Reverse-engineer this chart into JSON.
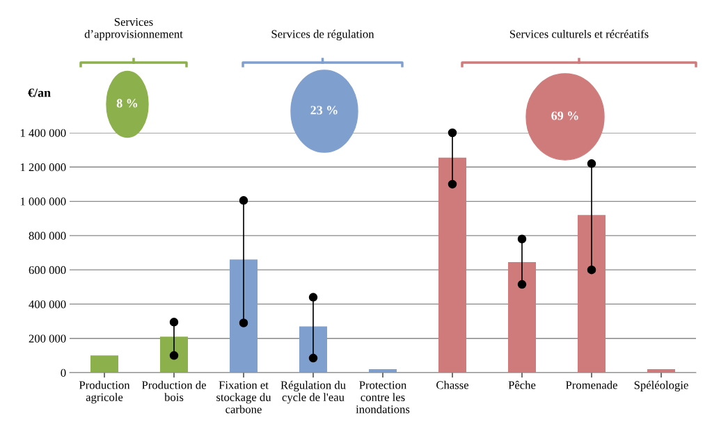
{
  "chart_data": {
    "type": "bar",
    "ylabel": "€/an",
    "categories": [
      "Production\nagricole",
      "Production de\nbois",
      "Fixation et\nstockage du\ncarbone",
      "Régulation du\ncycle de l'eau",
      "Protection\ncontre les\ninondations",
      "Chasse",
      "Pêche",
      "Promenade",
      "Spéléologie"
    ],
    "series": [
      {
        "colors": [
          "#8cb04c",
          "#8cb04c",
          "#7f9fcf",
          "#7f9fcf",
          "#7f9fcf",
          "#d07b7b",
          "#d07b7b",
          "#d07b7b",
          "#d07b7b"
        ],
        "values": [
          100000,
          210000,
          660000,
          270000,
          20000,
          1255000,
          645000,
          920000,
          20000
        ]
      },
      {
        "type": "line",
        "color": "#000000",
        "x": [
          "Production de\nbois",
          "Production de\nbois"
        ],
        "values": [
          100000,
          295000
        ]
      },
      {
        "type": "line",
        "color": "#000000",
        "x": [
          "Fixation et\nstockage du\ncarbone",
          "Fixation et\nstockage du\ncarbone"
        ],
        "values": [
          290000,
          1005000
        ]
      },
      {
        "type": "line",
        "color": "#000000",
        "x": [
          "Régulation du\ncycle de l'eau",
          "Régulation du\ncycle de l'eau"
        ],
        "values": [
          85000,
          440000
        ]
      },
      {
        "type": "line",
        "color": "#000000",
        "x": [
          "Chasse",
          "Chasse"
        ],
        "values": [
          1100000,
          1400000
        ]
      },
      {
        "type": "line",
        "color": "#000000",
        "x": [
          "Pêche",
          "Pêche"
        ],
        "values": [
          515000,
          780000
        ]
      },
      {
        "type": "line",
        "color": "#000000",
        "x": [
          "Promenade",
          "Promenade"
        ],
        "values": [
          600000,
          1220000
        ]
      }
    ],
    "marker": "circle",
    "ylim": [
      0,
      1400000
    ],
    "yticks": [
      0,
      {
        "value": 200000,
        "label": "200 000"
      },
      {
        "value": 400000,
        "label": "400 000"
      },
      {
        "value": 600000,
        "label": "600 000"
      },
      {
        "value": 800000,
        "label": "800 000"
      },
      {
        "value": 1000000,
        "label": "1 000 000"
      },
      {
        "value": 1200000,
        "label": "1 200 000"
      },
      {
        "value": 1400000,
        "label": "1 400 000"
      }
    ],
    "grid": "y",
    "annotations": [
      "Services\nd’approvisionnement",
      "Services de régulation",
      "Services culturels et récréatifs",
      "8 %",
      "23 %",
      "69 %"
    ]
  }
}
